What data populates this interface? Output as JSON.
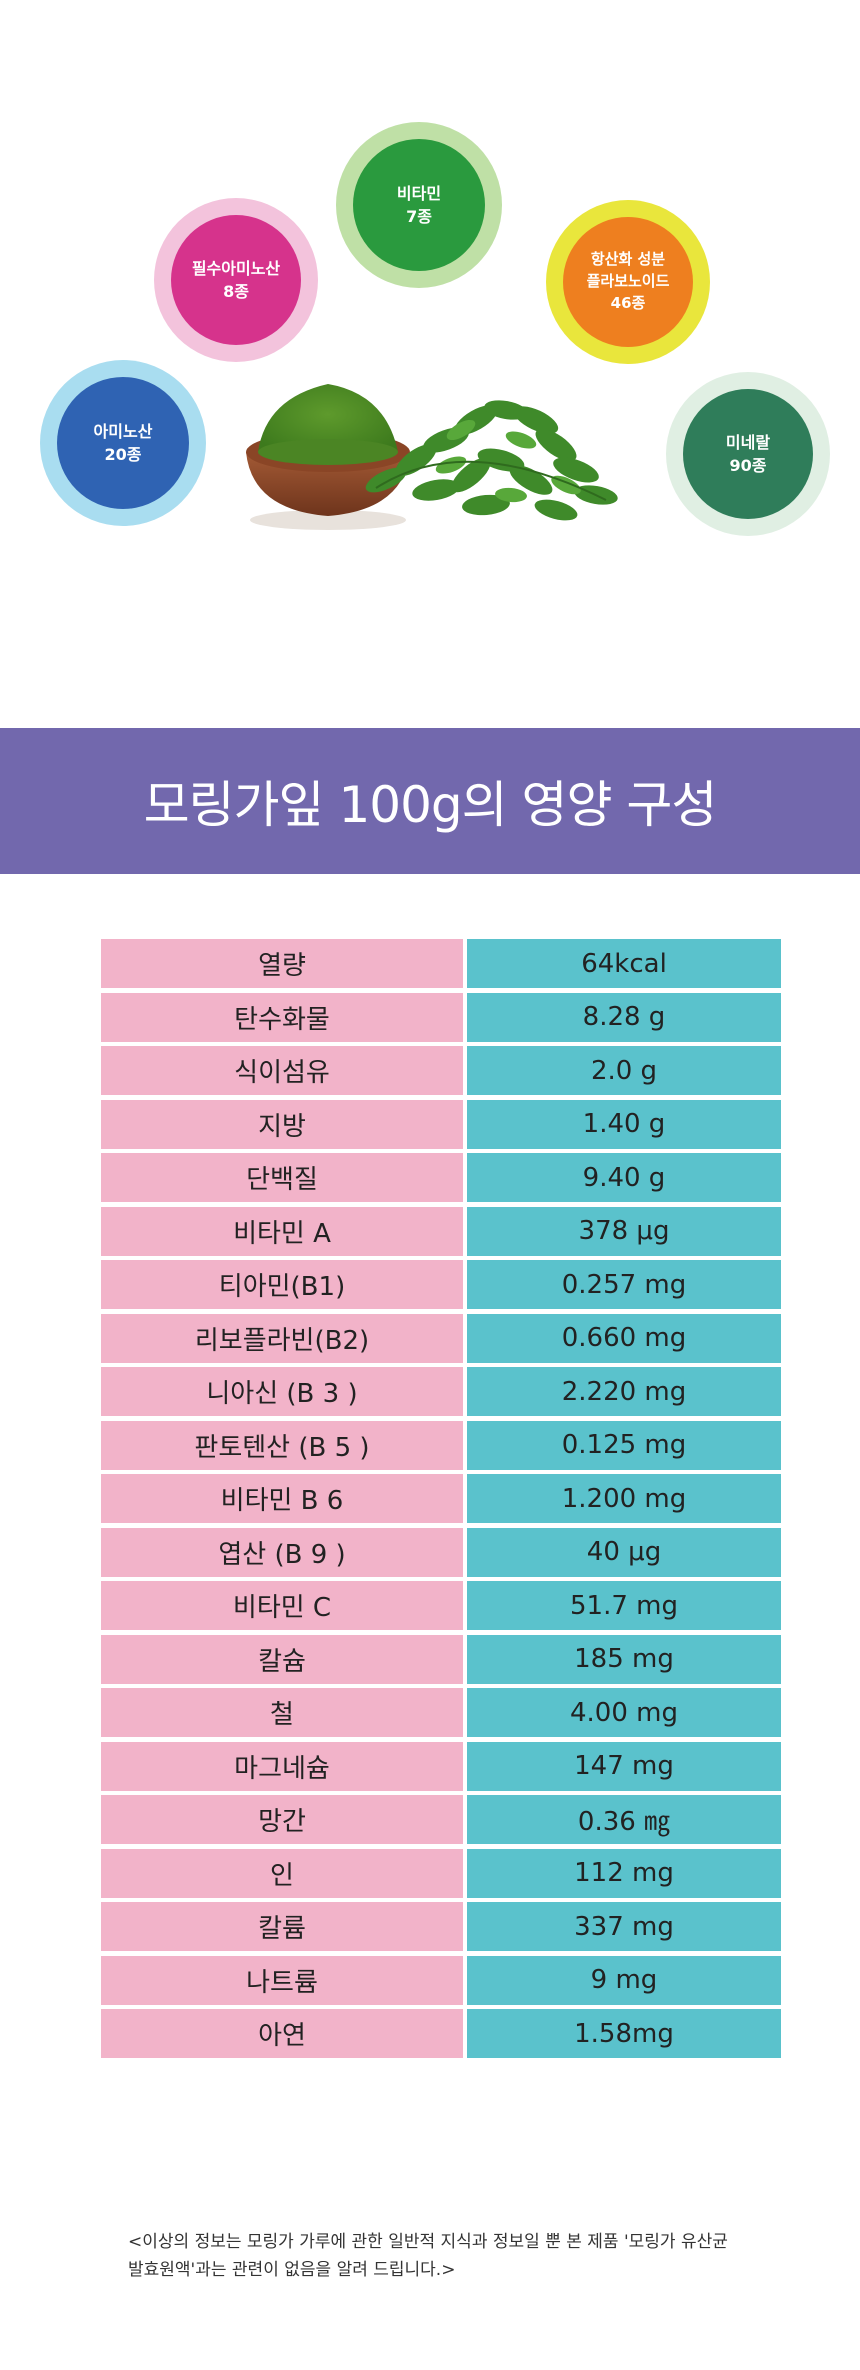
{
  "bubbles": {
    "amino": {
      "label": "아미노산",
      "count": "20종"
    },
    "essential_amino": {
      "label": "필수아미노산",
      "count": "8종"
    },
    "vitamin": {
      "label": "비타민",
      "count": "7종"
    },
    "antioxidant": {
      "line1": "항산화 성분",
      "line2": "플라보노이드",
      "count": "46종"
    },
    "mineral": {
      "label": "미네랄",
      "count": "90종"
    }
  },
  "banner": {
    "title": "모링가잎 100g의 영양 구성"
  },
  "nutrition": [
    {
      "name": "열량",
      "value": "64kcal"
    },
    {
      "name": "탄수화물",
      "value": "8.28 g"
    },
    {
      "name": "식이섬유",
      "value": "2.0 g"
    },
    {
      "name": "지방",
      "value": "1.40 g"
    },
    {
      "name": "단백질",
      "value": "9.40 g"
    },
    {
      "name": "비타민 A",
      "value": "378 μg"
    },
    {
      "name": "티아민(B1)",
      "value": "0.257 mg"
    },
    {
      "name": "리보플라빈(B2)",
      "value": "0.660 mg"
    },
    {
      "name": "니아신 (B 3 )",
      "value": "2.220 mg"
    },
    {
      "name": "판토텐산 (B 5 )",
      "value": "0.125 mg"
    },
    {
      "name": "비타민 B 6",
      "value": "1.200 mg"
    },
    {
      "name": "엽산 (B 9 )",
      "value": "40 μg"
    },
    {
      "name": "비타민 C",
      "value": "51.7 mg"
    },
    {
      "name": "칼슘",
      "value": "185 mg"
    },
    {
      "name": "철",
      "value": "4.00 mg"
    },
    {
      "name": "마그네슘",
      "value": "147 mg"
    },
    {
      "name": "망간",
      "value": "0.36 ㎎"
    },
    {
      "name": "인",
      "value": "112 mg"
    },
    {
      "name": "칼륨",
      "value": "337 mg"
    },
    {
      "name": "나트륨",
      "value": "9 mg"
    },
    {
      "name": "아연",
      "value": "1.58mg"
    }
  ],
  "footnote": {
    "line1": "<이상의 정보는 모링가 가루에 관한 일반적 지식과 정보일 뿐 본 제품 '모링가 유산균",
    "line2": "발효원액'과는 관련이 없음을 알려 드립니다.>"
  },
  "colors": {
    "banner": "#7268ad",
    "name_cell": "#f2b3c9",
    "value_cell": "#5ac2cc"
  },
  "images": {
    "moringa": "moringa-powder-bowl-and-leaves"
  }
}
